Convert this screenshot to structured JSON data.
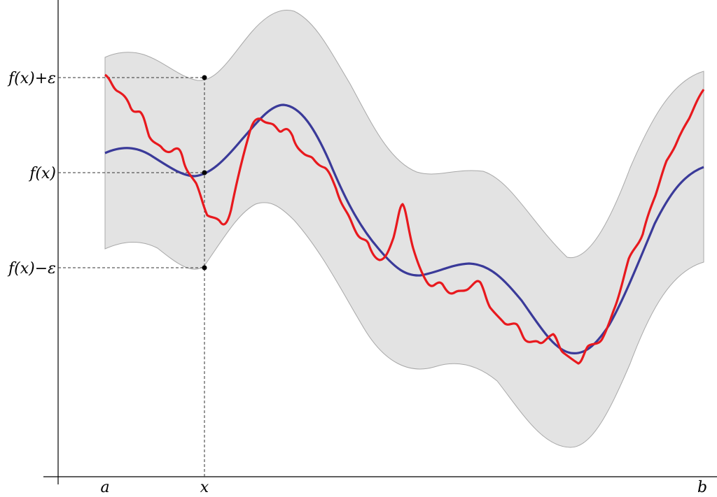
{
  "figure": {
    "y_labels": {
      "upper": "f(x)+ε",
      "middle": "f(x)",
      "lower": "f(x)−ε"
    },
    "x_labels": {
      "a": "a",
      "x": "x",
      "b": "b"
    }
  },
  "colors": {
    "function_curve": "#e8191e",
    "approximation_curve": "#3a3a99",
    "epsilon_band_fill": "#e3e3e3",
    "epsilon_band_edge": "#a8a8a8"
  }
}
